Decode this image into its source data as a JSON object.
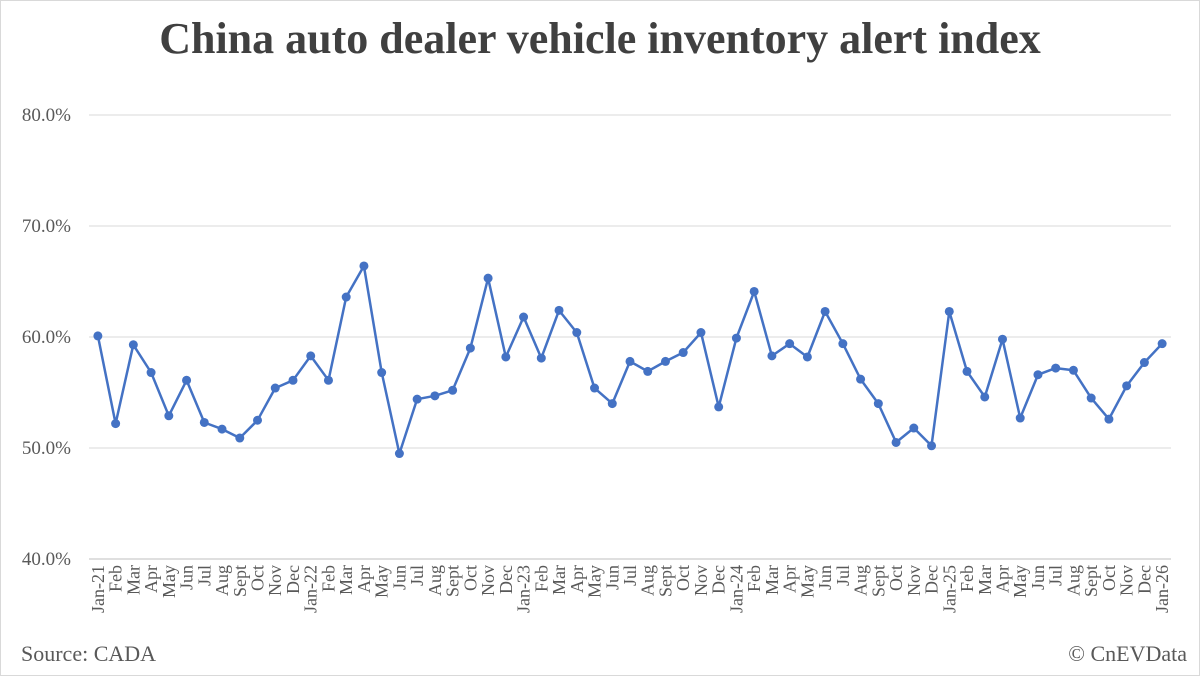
{
  "chart_data": {
    "type": "line",
    "title": "China auto dealer vehicle inventory alert index",
    "xlabel": "",
    "ylabel": "",
    "ylim": [
      40,
      80
    ],
    "yticks": [
      "40.0%",
      "50.0%",
      "60.0%",
      "70.0%",
      "80.0%"
    ],
    "categories": [
      "Jan-21",
      "Feb",
      "Mar",
      "Apr",
      "May",
      "Jun",
      "Jul",
      "Aug",
      "Sept",
      "Oct",
      "Nov",
      "Dec",
      "Jan-22",
      "Feb",
      "Mar",
      "Apr",
      "May",
      "Jun",
      "Jul",
      "Aug",
      "Sept",
      "Oct",
      "Nov",
      "Dec",
      "Jan-23",
      "Feb",
      "Mar",
      "Apr",
      "May",
      "Jun",
      "Jul",
      "Aug",
      "Sept",
      "Oct",
      "Nov",
      "Dec",
      "Jan-24",
      "Feb",
      "Mar",
      "Apr",
      "May",
      "Jun",
      "Jul",
      "Aug",
      "Sept",
      "Oct",
      "Nov",
      "Dec",
      "Jan-25",
      "Feb",
      "Mar",
      "Apr",
      "May",
      "Jun",
      "Jul",
      "Aug",
      "Sept",
      "Oct",
      "Nov",
      "Dec",
      "Jan-26"
    ],
    "series": [
      {
        "values": [
          60.1,
          52.2,
          59.3,
          56.8,
          52.9,
          56.1,
          52.3,
          51.7,
          50.9,
          52.5,
          55.4,
          56.1,
          58.3,
          56.1,
          63.6,
          66.4,
          56.8,
          49.5,
          54.4,
          54.7,
          55.2,
          59.0,
          65.3,
          58.2,
          61.8,
          58.1,
          62.4,
          60.4,
          55.4,
          54.0,
          57.8,
          56.9,
          57.8,
          58.6,
          60.4,
          53.7,
          59.9,
          64.1,
          58.3,
          59.4,
          58.2,
          62.3,
          59.4,
          56.2,
          54.0,
          50.5,
          51.8,
          50.2,
          62.3,
          56.9,
          54.6,
          59.8,
          52.7,
          56.6,
          57.2,
          57.0,
          54.5,
          52.6,
          55.6,
          57.7,
          59.4
        ],
        "color": "#4472c4"
      }
    ],
    "grid": true,
    "legend": "none",
    "gridline_color": "#d9d9d9"
  },
  "footer": {
    "source": "Source: CADA",
    "credit": "© CnEVData"
  }
}
